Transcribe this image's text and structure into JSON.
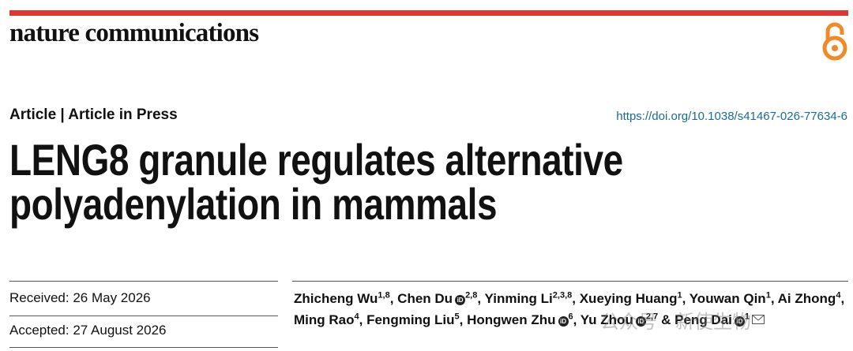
{
  "header": {
    "journal": "nature communications"
  },
  "article": {
    "type": "Article | Article in Press",
    "doi": "https://doi.org/10.1038/s41467-026-77634-6",
    "title_lines": [
      "LENG8 granule regulates alternative",
      "polyadenylation in mammals"
    ]
  },
  "dates": {
    "received": "Received: 26 May 2026",
    "accepted": "Accepted: 27 August 2026"
  },
  "authors": [
    {
      "name": "Zhicheng Wu",
      "sup": "1,8",
      "sep": ","
    },
    {
      "name": "Chen Du",
      "orcid": true,
      "sup": "2,8",
      "sep": ","
    },
    {
      "name": "Yinming Li",
      "sup": "2,3,8",
      "sep": ","
    },
    {
      "name": "Xueying Huang",
      "sup": "1",
      "sep": ","
    },
    {
      "name": "Youwan Qin",
      "sup": "1",
      "sep": ","
    },
    {
      "name": "Ai Zhong",
      "sup": "4",
      "sep": ","
    },
    {
      "name": "Ming Rao",
      "sup": "4",
      "sep": ","
    },
    {
      "name": "Fengming Liu",
      "sup": "5",
      "sep": ","
    },
    {
      "name": "Hongwen Zhu",
      "orcid": true,
      "sup": "6",
      "sep": ","
    },
    {
      "name": "Yu Zhou",
      "orcid": true,
      "sup": "2,7",
      "sep": "&"
    },
    {
      "name": "Peng Dai",
      "orcid": true,
      "sup": "1",
      "email": true
    }
  ],
  "watermark": "公众号 · 新使生物"
}
